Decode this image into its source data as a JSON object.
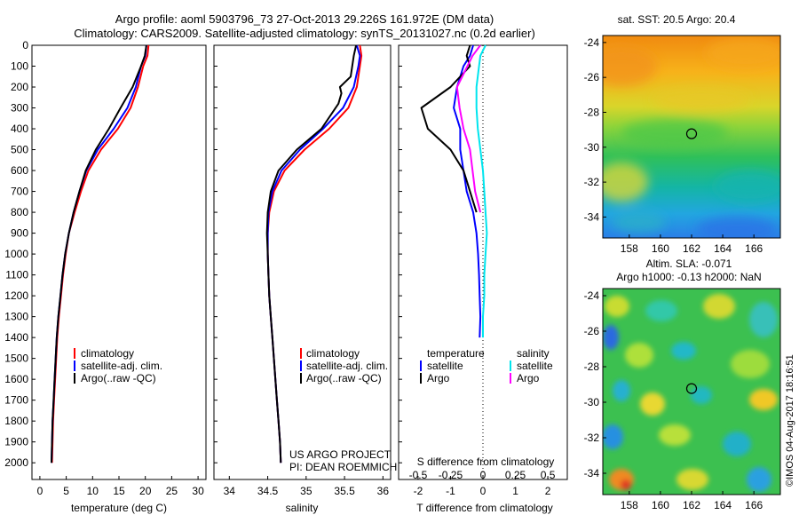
{
  "header": {
    "line1": "Argo profile: aoml 5903796_73 27-Oct-2013 29.226S 161.972E (DM data)",
    "line2": "Climatology: CARS2009. Satellite-adjusted climatology: synTS_20131027.nc (0.2d earlier)"
  },
  "colors": {
    "climatology": "#ff0000",
    "satellite": "#0000ff",
    "argo": "#000000",
    "sal_satellite": "#00e5ee",
    "sal_argo": "#ff00ff"
  },
  "credit": "©IMOS 04-Aug-2017 18:16:51",
  "chart_data": [
    {
      "type": "line",
      "name": "temperature-profile",
      "xlabel": "temperature (deg C)",
      "xlim": [
        -1.5,
        31.5
      ],
      "xticks": [
        0,
        5,
        10,
        15,
        20,
        25,
        30
      ],
      "ylim": [
        2080,
        0
      ],
      "yticks": [
        0,
        100,
        200,
        300,
        400,
        500,
        600,
        700,
        800,
        900,
        1000,
        1100,
        1200,
        1300,
        1400,
        1500,
        1600,
        1700,
        1800,
        1900,
        2000
      ],
      "legend": {
        "placement": "bottom-center",
        "entries": [
          "climatology",
          "satellite-adj. clim.",
          "Argo(..raw -QC)"
        ]
      },
      "series": [
        {
          "name": "climatology",
          "color": "#ff0000",
          "points": [
            [
              20.6,
              0
            ],
            [
              20.4,
              50
            ],
            [
              19.6,
              100
            ],
            [
              18.6,
              200
            ],
            [
              17.2,
              300
            ],
            [
              14.8,
              400
            ],
            [
              11.6,
              500
            ],
            [
              9.2,
              600
            ],
            [
              7.8,
              700
            ],
            [
              6.6,
              800
            ],
            [
              5.5,
              900
            ],
            [
              4.9,
              1000
            ],
            [
              4.4,
              1100
            ],
            [
              4.0,
              1200
            ],
            [
              3.6,
              1300
            ],
            [
              3.3,
              1400
            ],
            [
              3.1,
              1500
            ],
            [
              2.9,
              1600
            ],
            [
              2.7,
              1700
            ],
            [
              2.5,
              1800
            ],
            [
              2.4,
              1900
            ],
            [
              2.3,
              2000
            ]
          ]
        },
        {
          "name": "satellite-adj. clim.",
          "color": "#0000ff",
          "points": [
            [
              20.2,
              0
            ],
            [
              20.0,
              50
            ],
            [
              19.2,
              100
            ],
            [
              18.2,
              200
            ],
            [
              16.6,
              300
            ],
            [
              14.0,
              400
            ],
            [
              11.0,
              500
            ],
            [
              8.8,
              600
            ],
            [
              7.5,
              700
            ],
            [
              6.4,
              800
            ],
            [
              5.5,
              900
            ],
            [
              4.8,
              1000
            ],
            [
              4.3,
              1100
            ],
            [
              3.9,
              1200
            ],
            [
              3.5,
              1300
            ],
            [
              3.2,
              1400
            ],
            [
              3.0,
              1500
            ],
            [
              2.8,
              1600
            ],
            [
              2.6,
              1700
            ],
            [
              2.4,
              1800
            ],
            [
              2.3,
              1900
            ],
            [
              2.2,
              2000
            ]
          ]
        },
        {
          "name": "Argo(..raw -QC)",
          "color": "#000000",
          "points": [
            [
              20.2,
              0
            ],
            [
              19.9,
              50
            ],
            [
              19.2,
              100
            ],
            [
              17.6,
              200
            ],
            [
              15.3,
              300
            ],
            [
              13.1,
              400
            ],
            [
              10.6,
              500
            ],
            [
              8.7,
              600
            ],
            [
              7.5,
              700
            ],
            [
              6.4,
              800
            ],
            [
              5.5,
              900
            ],
            [
              4.8,
              1000
            ],
            [
              4.3,
              1100
            ],
            [
              3.9,
              1200
            ],
            [
              3.5,
              1300
            ],
            [
              3.2,
              1400
            ],
            [
              3.0,
              1500
            ],
            [
              2.8,
              1600
            ],
            [
              2.6,
              1700
            ],
            [
              2.4,
              1800
            ],
            [
              2.3,
              1900
            ],
            [
              2.2,
              2000
            ]
          ]
        }
      ]
    },
    {
      "type": "line",
      "name": "salinity-profile",
      "xlabel": "salinity",
      "xlim": [
        33.8,
        36.1
      ],
      "xticks": [
        34,
        34.5,
        35,
        35.5,
        36
      ],
      "ylim": [
        2080,
        0
      ],
      "legend": {
        "placement": "bottom-center",
        "entries": [
          "climatology",
          "satellite-adj. clim.",
          "Argo(..raw -QC)"
        ]
      },
      "annotation": [
        "US ARGO PROJECT",
        "PI: DEAN ROEMMICH"
      ],
      "series": [
        {
          "name": "climatology",
          "color": "#ff0000",
          "points": [
            [
              35.7,
              0
            ],
            [
              35.72,
              50
            ],
            [
              35.7,
              100
            ],
            [
              35.66,
              200
            ],
            [
              35.55,
              300
            ],
            [
              35.3,
              400
            ],
            [
              34.98,
              500
            ],
            [
              34.72,
              600
            ],
            [
              34.58,
              700
            ],
            [
              34.52,
              800
            ],
            [
              34.5,
              900
            ],
            [
              34.5,
              1000
            ],
            [
              34.51,
              1100
            ],
            [
              34.52,
              1200
            ],
            [
              34.54,
              1300
            ],
            [
              34.56,
              1400
            ],
            [
              34.58,
              1500
            ],
            [
              34.6,
              1600
            ],
            [
              34.62,
              1700
            ],
            [
              34.64,
              1800
            ],
            [
              34.66,
              1900
            ],
            [
              34.67,
              2000
            ]
          ]
        },
        {
          "name": "satellite-adj. clim.",
          "color": "#0000ff",
          "points": [
            [
              35.66,
              0
            ],
            [
              35.7,
              50
            ],
            [
              35.68,
              100
            ],
            [
              35.62,
              200
            ],
            [
              35.48,
              300
            ],
            [
              35.22,
              400
            ],
            [
              34.92,
              500
            ],
            [
              34.68,
              600
            ],
            [
              34.56,
              700
            ],
            [
              34.51,
              800
            ],
            [
              34.5,
              900
            ],
            [
              34.5,
              1000
            ],
            [
              34.51,
              1100
            ],
            [
              34.52,
              1200
            ],
            [
              34.54,
              1300
            ],
            [
              34.56,
              1400
            ],
            [
              34.58,
              1500
            ],
            [
              34.6,
              1600
            ],
            [
              34.62,
              1700
            ],
            [
              34.64,
              1800
            ],
            [
              34.66,
              1900
            ],
            [
              34.67,
              2000
            ]
          ]
        },
        {
          "name": "Argo(..raw -QC)",
          "color": "#000000",
          "points": [
            [
              35.65,
              0
            ],
            [
              35.62,
              50
            ],
            [
              35.58,
              150
            ],
            [
              35.44,
              200
            ],
            [
              35.46,
              230
            ],
            [
              35.42,
              280
            ],
            [
              35.2,
              400
            ],
            [
              34.88,
              500
            ],
            [
              34.64,
              600
            ],
            [
              34.54,
              700
            ],
            [
              34.5,
              800
            ],
            [
              34.49,
              900
            ],
            [
              34.5,
              1000
            ],
            [
              34.51,
              1100
            ],
            [
              34.52,
              1200
            ],
            [
              34.54,
              1300
            ],
            [
              34.56,
              1400
            ],
            [
              34.58,
              1500
            ],
            [
              34.6,
              1600
            ],
            [
              34.62,
              1700
            ],
            [
              34.64,
              1800
            ],
            [
              34.66,
              1900
            ],
            [
              34.67,
              2000
            ]
          ]
        }
      ]
    },
    {
      "type": "line",
      "name": "difference-from-climatology",
      "xlabel": "T difference from climatology",
      "top_axis_label": "S difference from climatology",
      "xlim": [
        -2.6,
        2.6
      ],
      "xticks": [
        -2,
        -1,
        0,
        1,
        2
      ],
      "s_ticks": [
        -0.5,
        -0.25,
        0,
        0.25,
        0.5
      ],
      "ylim": [
        2080,
        0
      ],
      "legend": {
        "placement": "bottom",
        "temperature_title": "temperature",
        "salinity_title": "salinity",
        "temperature_entries": [
          "satellite",
          "Argo"
        ],
        "salinity_entries": [
          "satellite",
          "Argo"
        ]
      },
      "series": [
        {
          "name": "temperature satellite",
          "color": "#0000ff",
          "points": [
            [
              -0.3,
              0
            ],
            [
              -0.4,
              50
            ],
            [
              -0.6,
              100
            ],
            [
              -0.8,
              200
            ],
            [
              -0.9,
              300
            ],
            [
              -0.7,
              400
            ],
            [
              -0.7,
              500
            ],
            [
              -0.6,
              600
            ],
            [
              -0.5,
              700
            ],
            [
              -0.3,
              800
            ],
            [
              -0.2,
              900
            ],
            [
              -0.15,
              1000
            ],
            [
              -0.12,
              1100
            ],
            [
              -0.1,
              1200
            ],
            [
              -0.08,
              1300
            ],
            [
              -0.1,
              1400
            ]
          ]
        },
        {
          "name": "temperature Argo",
          "color": "#000000",
          "points": [
            [
              -0.4,
              0
            ],
            [
              -0.5,
              50
            ],
            [
              -0.4,
              100
            ],
            [
              -1.0,
              200
            ],
            [
              -1.9,
              300
            ],
            [
              -1.7,
              400
            ],
            [
              -1.0,
              500
            ],
            [
              -0.6,
              600
            ],
            [
              -0.4,
              700
            ],
            [
              -0.2,
              800
            ]
          ]
        },
        {
          "name": "salinity satellite",
          "color": "#00e5ee",
          "points": [
            [
              0.02,
              0
            ],
            [
              -0.02,
              50
            ],
            [
              -0.03,
              100
            ],
            [
              -0.05,
              200
            ],
            [
              -0.05,
              300
            ],
            [
              -0.04,
              400
            ],
            [
              -0.02,
              500
            ],
            [
              0,
              600
            ],
            [
              0.01,
              700
            ],
            [
              0.02,
              800
            ],
            [
              0.03,
              900
            ],
            [
              0.02,
              1000
            ],
            [
              0.01,
              1100
            ],
            [
              0.01,
              1200
            ],
            [
              0,
              1300
            ],
            [
              0,
              1400
            ]
          ]
        },
        {
          "name": "salinity Argo",
          "color": "#ff00ff",
          "points": [
            [
              -0.02,
              0
            ],
            [
              -0.08,
              50
            ],
            [
              -0.12,
              100
            ],
            [
              -0.2,
              200
            ],
            [
              -0.18,
              300
            ],
            [
              -0.15,
              400
            ],
            [
              -0.1,
              500
            ],
            [
              -0.08,
              600
            ],
            [
              -0.06,
              700
            ],
            [
              -0.02,
              800
            ]
          ]
        }
      ]
    },
    {
      "type": "heatmap",
      "name": "sst-map",
      "title": "sat. SST: 20.5 Argo: 20.4",
      "xticks": [
        158,
        160,
        162,
        164,
        166
      ],
      "yticks": [
        -24,
        -26,
        -28,
        -30,
        -32,
        -34
      ],
      "xlim": [
        156.3,
        167.7
      ],
      "ylim": [
        -35.2,
        -23.6
      ],
      "marker": [
        162.0,
        -29.23
      ]
    },
    {
      "type": "heatmap",
      "name": "sla-map",
      "title": "Altim. SLA: -0.071",
      "subtitle": "Argo h1000: -0.13 h2000: NaN",
      "xticks": [
        158,
        160,
        162,
        164,
        166
      ],
      "yticks": [
        -24,
        -26,
        -28,
        -30,
        -32,
        -34
      ],
      "xlim": [
        156.3,
        167.7
      ],
      "ylim": [
        -35.2,
        -23.6
      ],
      "marker": [
        162.0,
        -29.23
      ]
    }
  ]
}
